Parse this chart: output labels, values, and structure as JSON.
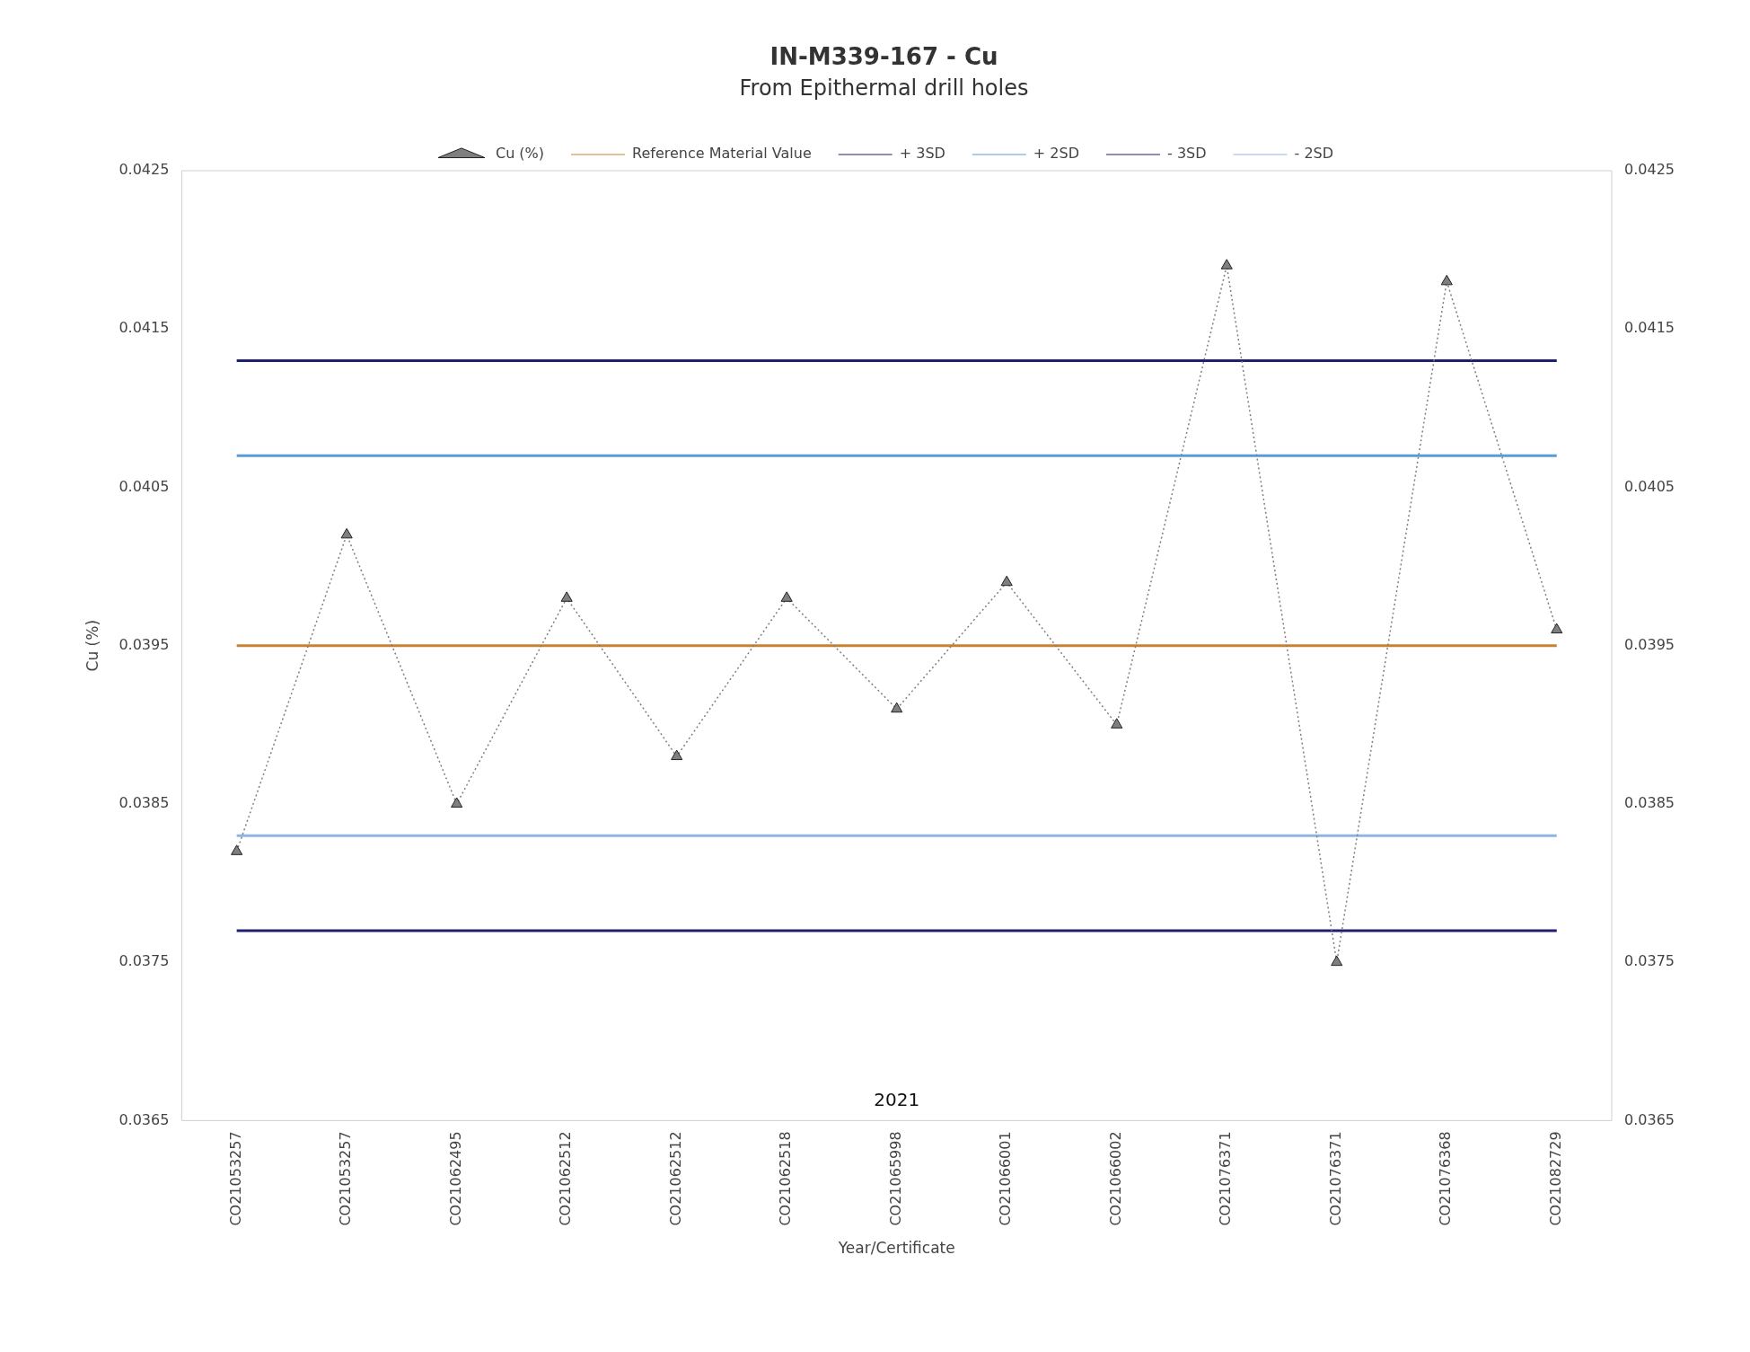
{
  "chart_data": {
    "type": "line",
    "title": "IN-M339-167 - Cu",
    "subtitle": "From Epithermal drill holes",
    "xlabel": "Year/Certificate",
    "ylabel": "Cu (%)",
    "categories": [
      "CO21053257",
      "CO21053257",
      "CO21062495",
      "CO21062512",
      "CO21062512",
      "CO21062518",
      "CO21065998",
      "CO21066001",
      "CO21066002",
      "CO21076371",
      "CO21076371",
      "CO21076368",
      "CO21082729"
    ],
    "series": [
      {
        "name": "Cu (%)",
        "color": "#7f7f7f",
        "marker": "triangle",
        "line_style": "dotted",
        "values": [
          0.0382,
          0.0402,
          0.0385,
          0.0398,
          0.0388,
          0.0398,
          0.0391,
          0.0399,
          0.039,
          0.0419,
          0.0375,
          0.0418,
          0.0396
        ]
      },
      {
        "name": "Reference Material Value",
        "color": "#c9822f",
        "marker": "none",
        "line_style": "solid",
        "values": [
          0.0395,
          0.0395,
          0.0395,
          0.0395,
          0.0395,
          0.0395,
          0.0395,
          0.0395,
          0.0395,
          0.0395,
          0.0395,
          0.0395,
          0.0395
        ]
      },
      {
        "name": "+ 3SD",
        "color": "#1f1f6e",
        "marker": "none",
        "line_style": "solid",
        "values": [
          0.0413,
          0.0413,
          0.0413,
          0.0413,
          0.0413,
          0.0413,
          0.0413,
          0.0413,
          0.0413,
          0.0413,
          0.0413,
          0.0413,
          0.0413
        ]
      },
      {
        "name": "+ 2SD",
        "color": "#5b9bd5",
        "marker": "none",
        "line_style": "solid",
        "values": [
          0.0407,
          0.0407,
          0.0407,
          0.0407,
          0.0407,
          0.0407,
          0.0407,
          0.0407,
          0.0407,
          0.0407,
          0.0407,
          0.0407,
          0.0407
        ]
      },
      {
        "name": "- 3SD",
        "color": "#1f1f6e",
        "marker": "none",
        "line_style": "solid",
        "values": [
          0.0377,
          0.0377,
          0.0377,
          0.0377,
          0.0377,
          0.0377,
          0.0377,
          0.0377,
          0.0377,
          0.0377,
          0.0377,
          0.0377,
          0.0377
        ]
      },
      {
        "name": "- 2SD",
        "color": "#8fb4e3",
        "marker": "none",
        "line_style": "solid",
        "values": [
          0.0383,
          0.0383,
          0.0383,
          0.0383,
          0.0383,
          0.0383,
          0.0383,
          0.0383,
          0.0383,
          0.0383,
          0.0383,
          0.0383,
          0.0383
        ]
      }
    ],
    "ylim": [
      0.0365,
      0.0425
    ],
    "yticks": [
      0.0365,
      0.0375,
      0.0385,
      0.0395,
      0.0405,
      0.0415,
      0.0425
    ],
    "y2lim": [
      0.0365,
      0.0425
    ],
    "y2ticks": [
      0.0365,
      0.0375,
      0.0385,
      0.0395,
      0.0405,
      0.0415,
      0.0425
    ],
    "annotations": [
      "2021"
    ],
    "grid": false,
    "legend": "top"
  }
}
